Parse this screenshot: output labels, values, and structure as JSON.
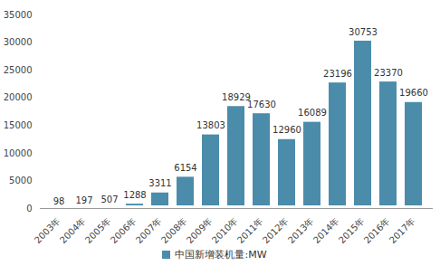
{
  "chart_data": {
    "type": "bar",
    "categories": [
      "2003年",
      "2004年",
      "2005年",
      "2006年",
      "2007年",
      "2008年",
      "2009年",
      "2010年",
      "2011年",
      "2012年",
      "2013年",
      "2014年",
      "2015年",
      "2016年",
      "2017年"
    ],
    "series": [
      {
        "name": "中国新增装机量:MW",
        "color": "#4b8cab",
        "values": [
          98,
          197,
          507,
          1288,
          3311,
          6154,
          13803,
          18929,
          17630,
          12960,
          16089,
          23196,
          30753,
          23370,
          19660
        ]
      }
    ],
    "ylim": [
      0,
      35000
    ],
    "yticks": [
      0,
      5000,
      10000,
      15000,
      20000,
      25000,
      30000,
      35000
    ],
    "grid": false,
    "legend": "bottom",
    "data_labels": true
  }
}
